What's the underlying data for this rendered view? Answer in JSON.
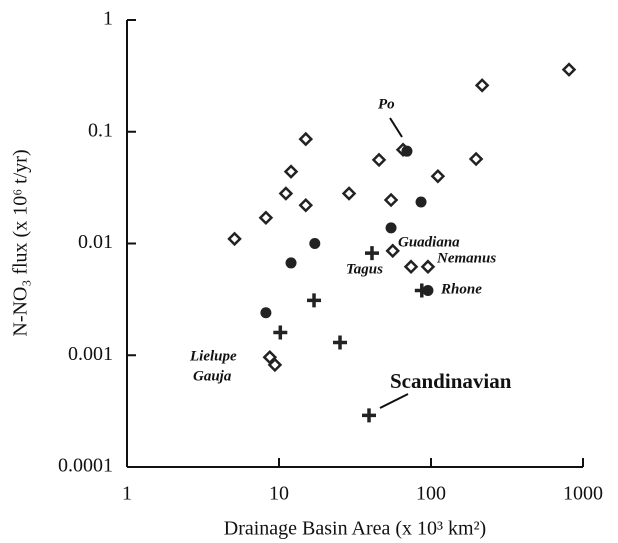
{
  "chart_data": {
    "type": "scatter",
    "x_label": "Drainage Basin Area (x 10³ km²)",
    "y_label": "N-NO₃ flux (x 10⁶ t/yr)",
    "xlog": true,
    "ylog": true,
    "xlim": [
      1,
      1000
    ],
    "ylim": [
      0.0001,
      1
    ],
    "xticks": [
      1,
      10,
      100,
      1000
    ],
    "yticks": [
      0.0001,
      0.001,
      0.01,
      0.1,
      1
    ],
    "series": [
      {
        "marker": "diamond",
        "color": "#222222",
        "x": [
          5.1,
          8.2,
          11.1,
          12,
          15,
          15,
          28.9,
          45.5,
          54.6,
          65.5,
          56,
          73.9,
          95.5,
          111,
          198,
          217,
          809,
          8.7,
          9.4
        ],
        "values": [
          0.011,
          0.017,
          0.028,
          0.044,
          0.086,
          0.022,
          0.028,
          0.056,
          0.0245,
          0.069,
          0.0086,
          0.0062,
          0.0062,
          0.04,
          0.057,
          0.26,
          0.36,
          0.00096,
          0.00082
        ]
      },
      {
        "marker": "dot",
        "color": "#222222",
        "x": [
          69.5,
          8.2,
          12,
          17.2,
          54.6,
          86,
          95.5
        ],
        "values": [
          0.067,
          0.0024,
          0.0067,
          0.01,
          0.0138,
          0.0235,
          0.0038
        ]
      },
      {
        "marker": "cross",
        "color": "#222222",
        "x": [
          10.2,
          17,
          25.2,
          40.9,
          87,
          39.1
        ],
        "values": [
          0.0016,
          0.0031,
          0.0013,
          0.0082,
          0.0038,
          0.00029
        ]
      }
    ],
    "annotations": [
      "Po",
      "Guadiana",
      "Tagus",
      "Nemanus",
      "Rhone",
      "Lielupe",
      "Gauja",
      "Scandinavian"
    ]
  }
}
